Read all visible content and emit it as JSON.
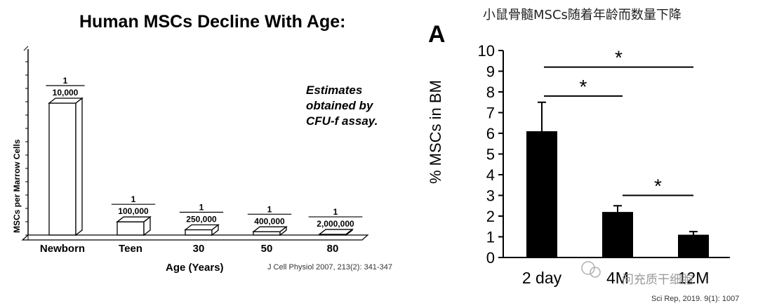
{
  "chart_data": [
    {
      "type": "bar",
      "title": "Human MSCs Decline With Age:",
      "xlabel": "Age (Years)",
      "ylabel": "MSCs per Marrow Cells",
      "categories": [
        "Newborn",
        "Teen",
        "30",
        "50",
        "80"
      ],
      "values": [
        0.0001,
        1e-05,
        4e-06,
        2.5e-06,
        5e-07
      ],
      "value_labels": [
        {
          "numerator": "1",
          "denominator": "10,000"
        },
        {
          "numerator": "1",
          "denominator": "100,000"
        },
        {
          "numerator": "1",
          "denominator": "250,000"
        },
        {
          "numerator": "1",
          "denominator": "400,000"
        },
        {
          "numerator": "1",
          "denominator": "2,000,000"
        }
      ],
      "annotation": [
        "Estimates",
        "obtained by",
        "CFU-f assay."
      ],
      "source": "J Cell Physiol 2007, 213(2): 341-347",
      "style": "3d-bar",
      "bar_color": "#ffffff"
    },
    {
      "type": "bar",
      "title": "小鼠骨髓MSCs随着年龄而数量下降",
      "panel_label": "A",
      "ylabel": "% MSCs in BM",
      "ylim": [
        0,
        10
      ],
      "yticks": [
        "0",
        "1",
        "2",
        "3",
        "4",
        "5",
        "6",
        "7",
        "8",
        "9",
        "10"
      ],
      "categories": [
        "2 day",
        "4 M",
        "12 M"
      ],
      "category_labels_visible": [
        "2 day",
        "4M",
        "12M"
      ],
      "values": [
        6.1,
        2.2,
        1.1
      ],
      "errors": [
        1.4,
        0.3,
        0.15
      ],
      "bar_color": "#000000",
      "significance": [
        {
          "from": 0,
          "to": 1,
          "label": "*"
        },
        {
          "from": 1,
          "to": 2,
          "label": "*"
        },
        {
          "from": 0,
          "to": 2,
          "label": "*"
        }
      ],
      "source": "Sci Rep, 2019. 9(1): 1007"
    }
  ],
  "watermark": "问充质干细胞"
}
